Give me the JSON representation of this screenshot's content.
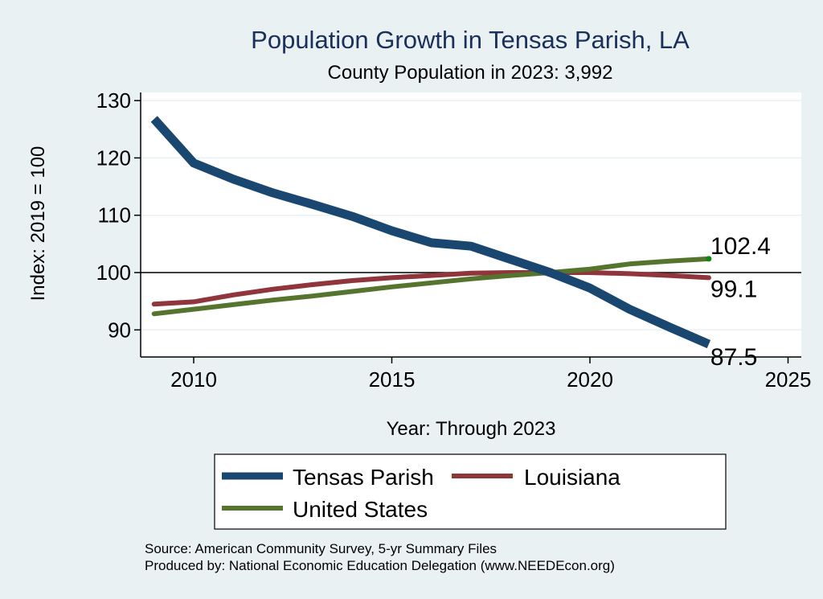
{
  "chart_data": {
    "type": "line",
    "title": "Population Growth in Tensas Parish, LA",
    "subtitle": "County Population in 2023: 3,992",
    "xlabel": "Year: Through 2023",
    "ylabel": "Index: 2019 = 100",
    "xlim": [
      2008.5,
      2025
    ],
    "ylim": [
      85.5,
      131.5
    ],
    "xticks": [
      2010,
      2015,
      2020,
      2025
    ],
    "yticks": [
      90,
      100,
      110,
      120,
      130
    ],
    "grid": true,
    "reference_line": 100,
    "x": [
      2009,
      2010,
      2011,
      2012,
      2013,
      2014,
      2015,
      2016,
      2017,
      2018,
      2019,
      2020,
      2021,
      2022,
      2023
    ],
    "series": [
      {
        "name": "Tensas Parish",
        "color": "#1a476f",
        "values": [
          126.8,
          119.1,
          116.3,
          113.9,
          111.9,
          109.8,
          107.3,
          105.2,
          104.6,
          102.3,
          100.0,
          97.3,
          93.6,
          90.5,
          87.5
        ],
        "end_label": "87.5"
      },
      {
        "name": "Louisiana",
        "color": "#90353b",
        "values": [
          94.5,
          94.9,
          96.1,
          97.1,
          97.9,
          98.6,
          99.1,
          99.5,
          99.9,
          100.0,
          100.0,
          100.0,
          99.8,
          99.5,
          99.1
        ],
        "end_label": "99.1"
      },
      {
        "name": "United States",
        "color": "#55752f",
        "values": [
          92.8,
          93.6,
          94.4,
          95.2,
          95.9,
          96.7,
          97.5,
          98.2,
          98.9,
          99.5,
          100.0,
          100.6,
          101.5,
          102.0,
          102.4
        ],
        "end_label": "102.4"
      }
    ],
    "legend": {
      "placement": "bottom",
      "entries": [
        "Tensas Parish",
        "Louisiana",
        "United States"
      ]
    },
    "notes": [
      "Source: American Community Survey, 5-yr Summary Files",
      "Produced by: National Economic Education Delegation (www.NEEDEcon.org)"
    ]
  }
}
